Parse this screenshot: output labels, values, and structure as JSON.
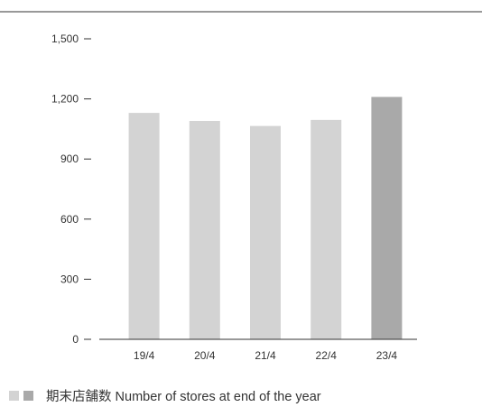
{
  "chart_data": {
    "type": "bar",
    "title": "",
    "xlabel": "",
    "ylabel": "",
    "categories": [
      "19/4",
      "20/4",
      "21/4",
      "22/4",
      "23/4"
    ],
    "series": [
      {
        "name": "期末店舗数 Number of stores at end of the year",
        "values": [
          1130,
          1090,
          1065,
          1095,
          1210
        ]
      }
    ],
    "ylim": [
      0,
      1500
    ],
    "yticks": [
      0,
      300,
      600,
      900,
      1200,
      1500
    ],
    "ytick_labels": [
      "0",
      "300",
      "600",
      "900",
      "1,200",
      "1,500"
    ],
    "grid": false,
    "legend_position": "bottom-left",
    "colors": {
      "bar": "#d3d3d3",
      "bar_highlight": "#a9a9a9",
      "axis": "#333333"
    },
    "highlight_index": 4
  }
}
